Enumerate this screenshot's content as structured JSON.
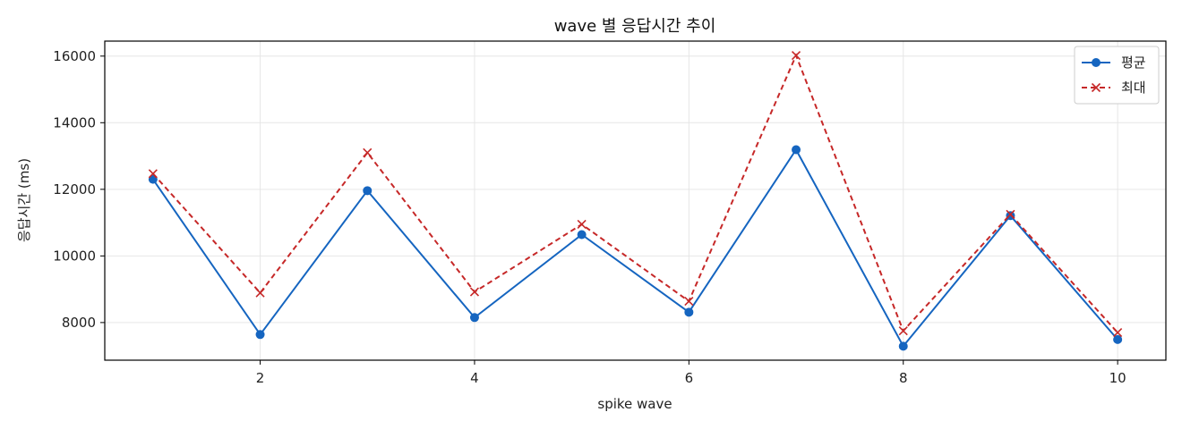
{
  "chart_data": {
    "type": "line",
    "title": "wave 별 응답시간 추이",
    "xlabel": "spike wave",
    "ylabel": "응답시간 (ms)",
    "x": [
      1,
      2,
      3,
      4,
      5,
      6,
      7,
      8,
      9,
      10
    ],
    "xticks": [
      2,
      4,
      6,
      8,
      10
    ],
    "yticks": [
      8000,
      10000,
      12000,
      14000,
      16000
    ],
    "xlim": [
      0.55,
      10.45
    ],
    "ylim": [
      6870,
      16450
    ],
    "grid": true,
    "legend_position": "top-right",
    "series": [
      {
        "name": "평균",
        "color": "#1565c0",
        "linestyle": "solid",
        "marker": "circle",
        "values": [
          12300,
          7640,
          11960,
          8150,
          10640,
          8310,
          13190,
          7290,
          11210,
          7490
        ]
      },
      {
        "name": "최대",
        "color": "#c62828",
        "linestyle": "dashed",
        "marker": "x",
        "values": [
          12470,
          8890,
          13100,
          8920,
          10950,
          8640,
          16020,
          7750,
          11250,
          7700
        ]
      }
    ]
  }
}
